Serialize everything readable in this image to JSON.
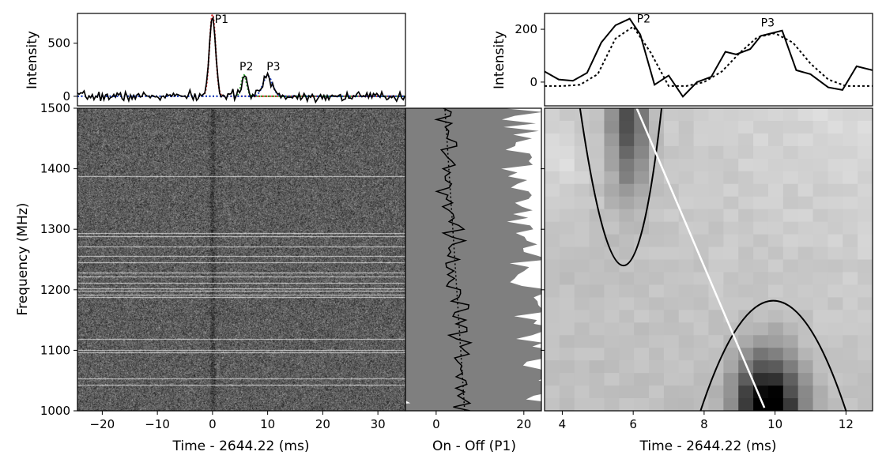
{
  "chart_data": [
    {
      "id": "profile_left",
      "type": "line",
      "ylabel": "Intensity",
      "xlim": [
        -24.5,
        35
      ],
      "ylim": [
        -90,
        780
      ],
      "yticks": [
        0,
        500
      ],
      "ytick_labels": [
        "0",
        "500"
      ],
      "components": [
        {
          "name": "P1",
          "center": 0.0,
          "amp": 770,
          "sigma": 0.55,
          "color": "#d62728"
        },
        {
          "name": "P2",
          "center": 5.7,
          "amp": 200,
          "sigma": 0.5,
          "color": "#2ca02c"
        },
        {
          "name": "P3",
          "center": 10.0,
          "amp": 195,
          "sigma": 0.85,
          "color": "#1f3fbf"
        }
      ],
      "labels": [
        {
          "text": "P1",
          "x": 0.4,
          "y": 690
        },
        {
          "text": "P2",
          "x": 4.9,
          "y": 245
        },
        {
          "text": "P3",
          "x": 9.8,
          "y": 245
        }
      ]
    },
    {
      "id": "dynamic_spectrum",
      "type": "heatmap",
      "xlabel": "Time - 2644.22 (ms)",
      "ylabel": "Frequency (MHz)",
      "xlim": [
        -24.5,
        35
      ],
      "ylim": [
        1000,
        1500
      ],
      "xticks": [
        -20,
        -10,
        0,
        10,
        20,
        30
      ],
      "xtick_labels": [
        "−20",
        "−10",
        "0",
        "10",
        "20",
        "30"
      ],
      "yticks": [
        1000,
        1100,
        1200,
        1300,
        1400,
        1500
      ],
      "ytick_labels": [
        "1000",
        "1100",
        "1200",
        "1300",
        "1400",
        "1500"
      ],
      "rfi_channels_mhz": [
        1043,
        1054,
        1096,
        1100,
        1119,
        1188,
        1192,
        1199,
        1203,
        1211,
        1222,
        1229,
        1246,
        1256,
        1272,
        1288,
        1294,
        1388
      ]
    },
    {
      "id": "on_off_spectrum",
      "type": "area",
      "xlabel": "On - Off (P1)",
      "xlim": [
        -7,
        24
      ],
      "ylim": [
        1000,
        1500
      ],
      "xticks": [
        0,
        20
      ],
      "xtick_labels": [
        "0",
        "20"
      ],
      "fit_line": {
        "x_at_1000": 6.5,
        "x_at_1500": 2.0
      }
    },
    {
      "id": "profile_right",
      "type": "line",
      "ylabel": "Intensity",
      "xlim": [
        3.5,
        12.75
      ],
      "ylim": [
        -90,
        260
      ],
      "yticks": [
        0,
        200
      ],
      "ytick_labels": [
        "0",
        "200"
      ],
      "series": [
        {
          "style": "solid",
          "x": [
            3.5,
            3.9,
            4.3,
            4.7,
            5.1,
            5.5,
            5.9,
            6.2,
            6.6,
            7.0,
            7.4,
            7.8,
            8.2,
            8.6,
            8.9,
            9.3,
            9.6,
            9.9,
            10.2,
            10.6,
            11.0,
            11.5,
            11.9,
            12.3,
            12.75
          ],
          "y": [
            40,
            10,
            5,
            35,
            150,
            215,
            240,
            180,
            -10,
            25,
            -55,
            0,
            20,
            115,
            105,
            125,
            175,
            185,
            195,
            45,
            30,
            -20,
            -30,
            60,
            45
          ]
        },
        {
          "style": "dotted",
          "x": [
            3.5,
            4.0,
            4.5,
            5.0,
            5.5,
            6.0,
            6.5,
            7.0,
            7.5,
            8.0,
            8.5,
            9.0,
            9.5,
            10.0,
            10.5,
            11.0,
            11.5,
            12.0,
            12.5,
            12.75
          ],
          "y": [
            -15,
            -15,
            -10,
            30,
            165,
            210,
            110,
            -15,
            -15,
            0,
            40,
            110,
            170,
            185,
            150,
            70,
            10,
            -15,
            -15,
            -15
          ]
        }
      ],
      "labels": [
        {
          "text": "P2",
          "x": 6.1,
          "y": 225
        },
        {
          "text": "P3",
          "x": 9.6,
          "y": 210
        }
      ]
    },
    {
      "id": "acf_map",
      "type": "heatmap",
      "xlabel": "Time - 2644.22 (ms)",
      "xlim": [
        3.5,
        12.75
      ],
      "ylim": [
        1000,
        1500
      ],
      "xticks": [
        4,
        6,
        8,
        10,
        12
      ],
      "xtick_labels": [
        "4",
        "6",
        "8",
        "10",
        "12"
      ],
      "yticks": [
        1100,
        1200,
        1300,
        1400
      ],
      "contours": [
        {
          "shape": "parabola_down",
          "x_left": 4.5,
          "x_right": 6.8,
          "vertex_x": 5.8,
          "vertex_y": 1240,
          "top_y": 1500
        },
        {
          "shape": "arch_up",
          "x_left": 7.9,
          "x_right": 12.0,
          "peak_x": 9.95,
          "peak_y": 1182,
          "base_y": 1000
        }
      ],
      "drift_line": {
        "x1": 6.1,
        "y1": 1500,
        "x2": 9.7,
        "y2": 1005
      }
    }
  ]
}
